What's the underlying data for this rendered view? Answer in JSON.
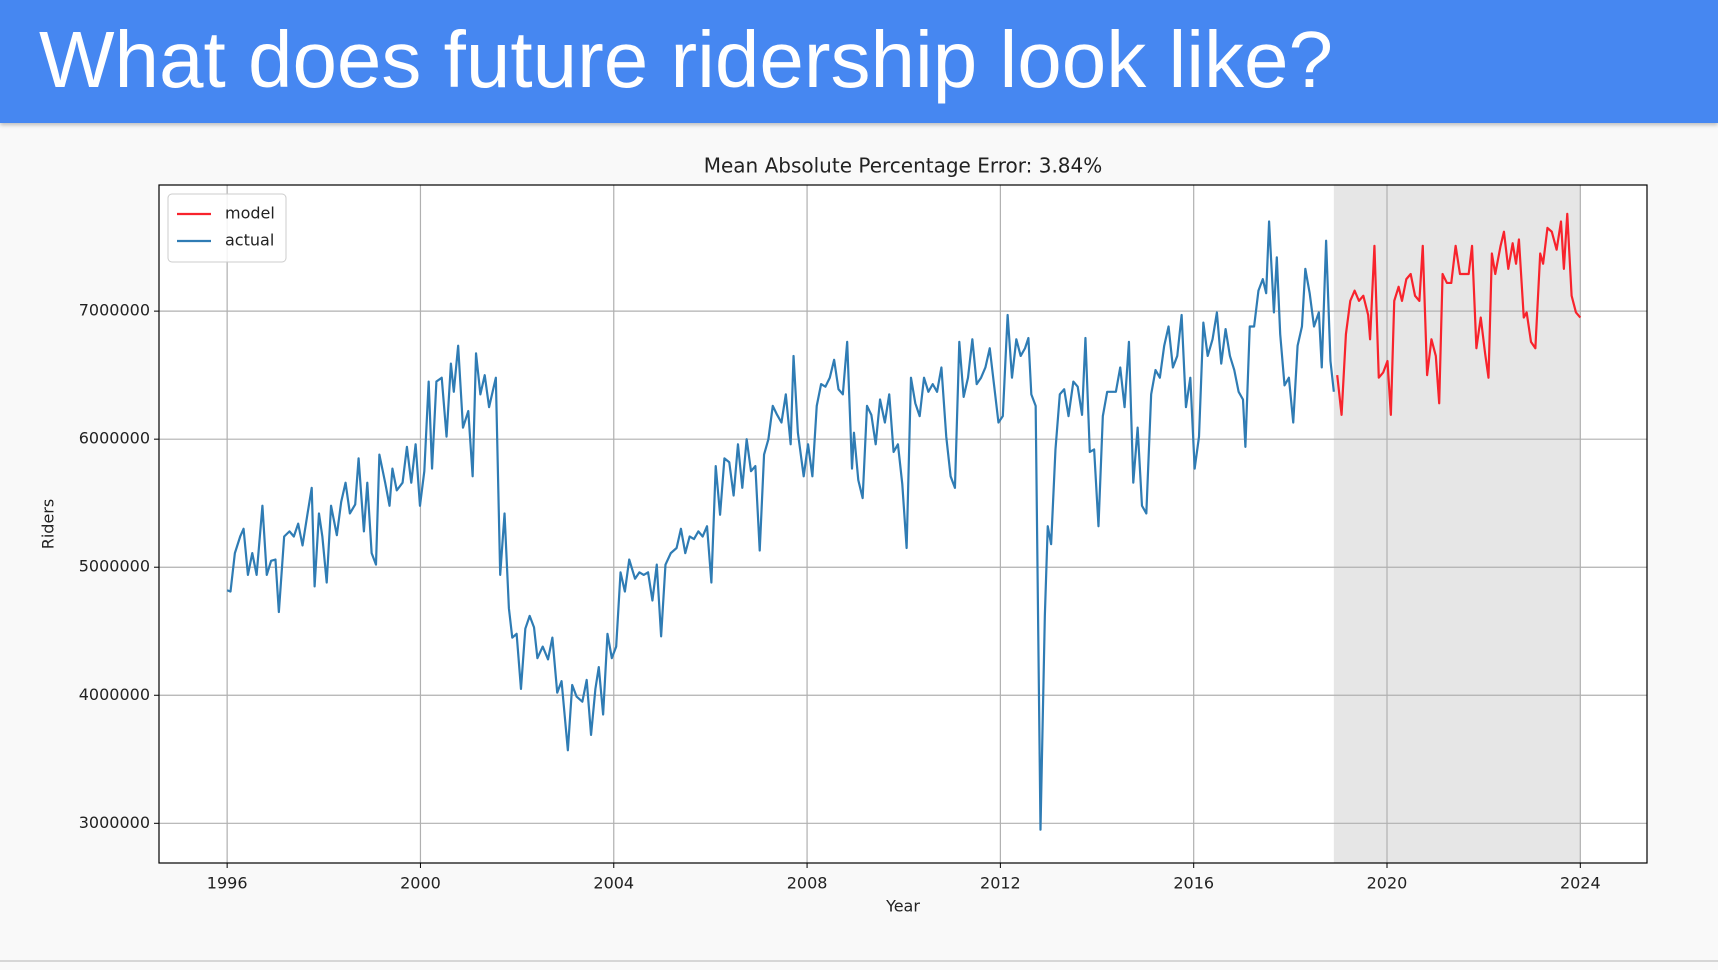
{
  "slide_title": "What does future ridership look like?",
  "chart_data": {
    "type": "line",
    "title": "Mean Absolute Percentage Error: 3.84%",
    "x_label": "Year",
    "y_label": "Riders",
    "xlim": [
      1994.59,
      2025.38
    ],
    "ylim": [
      2690000,
      7985000
    ],
    "xticks": [
      1996,
      2000,
      2004,
      2008,
      2012,
      2016,
      2020,
      2024
    ],
    "yticks": [
      3000000,
      4000000,
      5000000,
      6000000,
      7000000
    ],
    "grid": true,
    "legend": "upper left",
    "shaded_span": [
      2018.9,
      2024
    ],
    "shade_color": "#e6e6e6",
    "series": [
      {
        "name": "model",
        "color": "#f8232c",
        "x": [
          2018.97,
          2019.06,
          2019.15,
          2019.24,
          2019.33,
          2019.42,
          2019.51,
          2019.61,
          2019.65,
          2019.74,
          2019.83,
          2019.92,
          2020.01,
          2020.08,
          2020.15,
          2020.24,
          2020.31,
          2020.4,
          2020.49,
          2020.58,
          2020.67,
          2020.74,
          2020.83,
          2020.92,
          2021.01,
          2021.08,
          2021.15,
          2021.24,
          2021.33,
          2021.42,
          2021.51,
          2021.6,
          2021.69,
          2021.76,
          2021.85,
          2021.94,
          2022.03,
          2022.1,
          2022.17,
          2022.24,
          2022.35,
          2022.42,
          2022.51,
          2022.6,
          2022.67,
          2022.73,
          2022.83,
          2022.89,
          2022.98,
          2023.07,
          2023.17,
          2023.23,
          2023.32,
          2023.41,
          2023.51,
          2023.6,
          2023.66,
          2023.73,
          2023.82,
          2023.91,
          2024
        ],
        "values": [
          6500000,
          6190000,
          6820000,
          7080000,
          7160000,
          7080000,
          7120000,
          6970000,
          6780000,
          7510000,
          6480000,
          6520000,
          6610000,
          6190000,
          7080000,
          7190000,
          7080000,
          7250000,
          7290000,
          7120000,
          7080000,
          7510000,
          6500000,
          6780000,
          6650000,
          6280000,
          7290000,
          7220000,
          7220000,
          7510000,
          7290000,
          7290000,
          7290000,
          7510000,
          6710000,
          6950000,
          6670000,
          6480000,
          7450000,
          7290000,
          7510000,
          7620000,
          7330000,
          7530000,
          7370000,
          7560000,
          6950000,
          6990000,
          6760000,
          6710000,
          7450000,
          7370000,
          7650000,
          7620000,
          7480000,
          7700000,
          7330000,
          7760000,
          7120000,
          6990000,
          6950000
        ]
      },
      {
        "name": "actual",
        "color": "#2f7cb4",
        "x": [
          1996,
          1996.07,
          1996.16,
          1996.27,
          1996.34,
          1996.43,
          1996.52,
          1996.61,
          1996.73,
          1996.82,
          1996.91,
          1997,
          1997.07,
          1997.18,
          1997.29,
          1997.38,
          1997.47,
          1997.56,
          1997.66,
          1997.75,
          1997.81,
          1997.9,
          1997.97,
          1998.06,
          1998.15,
          1998.27,
          1998.36,
          1998.45,
          1998.54,
          1998.65,
          1998.72,
          1998.83,
          1998.9,
          1998.99,
          1999.08,
          1999.15,
          1999.27,
          1999.36,
          1999.42,
          1999.51,
          1999.63,
          1999.72,
          1999.81,
          1999.9,
          1999.99,
          2000.08,
          2000.17,
          2000.24,
          2000.33,
          2000.44,
          2000.54,
          2000.63,
          2000.69,
          2000.78,
          2000.88,
          2000.99,
          2001.08,
          2001.15,
          2001.24,
          2001.33,
          2001.42,
          2001.56,
          2001.65,
          2001.74,
          2001.83,
          2001.9,
          2001.99,
          2002.08,
          2002.17,
          2002.26,
          2002.35,
          2002.42,
          2002.53,
          2002.64,
          2002.73,
          2002.83,
          2002.92,
          2003.05,
          2003.14,
          2003.23,
          2003.35,
          2003.44,
          2003.53,
          2003.62,
          2003.69,
          2003.78,
          2003.87,
          2003.96,
          2004.05,
          2004.14,
          2004.23,
          2004.32,
          2004.44,
          2004.53,
          2004.62,
          2004.71,
          2004.8,
          2004.89,
          2004.98,
          2005.07,
          2005.18,
          2005.3,
          2005.39,
          2005.48,
          2005.57,
          2005.66,
          2005.75,
          2005.84,
          2005.93,
          2006.02,
          2006.11,
          2006.2,
          2006.29,
          2006.39,
          2006.48,
          2006.57,
          2006.66,
          2006.75,
          2006.84,
          2006.93,
          2007.02,
          2007.11,
          2007.2,
          2007.29,
          2007.38,
          2007.47,
          2007.56,
          2007.66,
          2007.72,
          2007.81,
          2007.93,
          2008.02,
          2008.11,
          2008.2,
          2008.29,
          2008.38,
          2008.47,
          2008.56,
          2008.65,
          2008.74,
          2008.83,
          2008.93,
          2008.97,
          2009.06,
          2009.15,
          2009.24,
          2009.33,
          2009.42,
          2009.51,
          2009.61,
          2009.7,
          2009.79,
          2009.88,
          2009.97,
          2010.06,
          2010.15,
          2010.24,
          2010.33,
          2010.42,
          2010.51,
          2010.6,
          2010.69,
          2010.78,
          2010.88,
          2010.97,
          2011.06,
          2011.15,
          2011.24,
          2011.33,
          2011.42,
          2011.51,
          2011.6,
          2011.69,
          2011.78,
          2011.87,
          2011.96,
          2012.05,
          2012.15,
          2012.24,
          2012.33,
          2012.42,
          2012.51,
          2012.58,
          2012.64,
          2012.73,
          2012.83,
          2012.92,
          2012.98,
          2013.05,
          2013.14,
          2013.23,
          2013.32,
          2013.41,
          2013.51,
          2013.6,
          2013.69,
          2013.76,
          2013.85,
          2013.94,
          2014.03,
          2014.12,
          2014.21,
          2014.3,
          2014.39,
          2014.48,
          2014.57,
          2014.66,
          2014.75,
          2014.84,
          2014.93,
          2015.02,
          2015.12,
          2015.21,
          2015.3,
          2015.39,
          2015.48,
          2015.57,
          2015.66,
          2015.75,
          2015.84,
          2015.93,
          2016.02,
          2016.11,
          2016.2,
          2016.29,
          2016.39,
          2016.48,
          2016.57,
          2016.66,
          2016.75,
          2016.84,
          2016.93,
          2017.02,
          2017.07,
          2017.16,
          2017.25,
          2017.34,
          2017.43,
          2017.5,
          2017.56,
          2017.66,
          2017.72,
          2017.79,
          2017.88,
          2017.97,
          2018.06,
          2018.15,
          2018.24,
          2018.31,
          2018.4,
          2018.49,
          2018.59,
          2018.65,
          2018.74,
          2018.83,
          2018.9
        ],
        "values": [
          4820000,
          4810000,
          5110000,
          5240000,
          5300000,
          4940000,
          5110000,
          4940000,
          5480000,
          4940000,
          5050000,
          5060000,
          4650000,
          5240000,
          5280000,
          5240000,
          5340000,
          5170000,
          5410000,
          5620000,
          4850000,
          5420000,
          5240000,
          4880000,
          5480000,
          5250000,
          5510000,
          5660000,
          5420000,
          5490000,
          5850000,
          5280000,
          5660000,
          5110000,
          5020000,
          5880000,
          5660000,
          5480000,
          5770000,
          5600000,
          5660000,
          5940000,
          5660000,
          5960000,
          5480000,
          5750000,
          6450000,
          5770000,
          6450000,
          6480000,
          6020000,
          6590000,
          6370000,
          6730000,
          6090000,
          6220000,
          5710000,
          6670000,
          6350000,
          6500000,
          6250000,
          6480000,
          4940000,
          5420000,
          4680000,
          4450000,
          4480000,
          4050000,
          4520000,
          4620000,
          4530000,
          4290000,
          4380000,
          4280000,
          4450000,
          4020000,
          4110000,
          3570000,
          4080000,
          3990000,
          3950000,
          4120000,
          3690000,
          4050000,
          4220000,
          3850000,
          4480000,
          4290000,
          4380000,
          4960000,
          4810000,
          5060000,
          4910000,
          4960000,
          4940000,
          4960000,
          4740000,
          5020000,
          4460000,
          5020000,
          5110000,
          5150000,
          5300000,
          5110000,
          5240000,
          5220000,
          5280000,
          5240000,
          5320000,
          4880000,
          5790000,
          5410000,
          5850000,
          5820000,
          5560000,
          5960000,
          5620000,
          6000000,
          5750000,
          5790000,
          5130000,
          5880000,
          6000000,
          6260000,
          6190000,
          6130000,
          6350000,
          5960000,
          6650000,
          6050000,
          5710000,
          5960000,
          5710000,
          6260000,
          6430000,
          6410000,
          6480000,
          6620000,
          6390000,
          6350000,
          6760000,
          5770000,
          6050000,
          5680000,
          5540000,
          6260000,
          6190000,
          5960000,
          6310000,
          6130000,
          6350000,
          5900000,
          5960000,
          5650000,
          5150000,
          6480000,
          6280000,
          6180000,
          6480000,
          6370000,
          6430000,
          6370000,
          6560000,
          6020000,
          5710000,
          5620000,
          6760000,
          6330000,
          6480000,
          6780000,
          6430000,
          6480000,
          6560000,
          6710000,
          6420000,
          6130000,
          6180000,
          6970000,
          6480000,
          6780000,
          6650000,
          6710000,
          6790000,
          6350000,
          6260000,
          2950000,
          4620000,
          5320000,
          5180000,
          5920000,
          6350000,
          6390000,
          6180000,
          6450000,
          6410000,
          6190000,
          6790000,
          5900000,
          5920000,
          5320000,
          6180000,
          6370000,
          6370000,
          6370000,
          6560000,
          6250000,
          6760000,
          5660000,
          6090000,
          5480000,
          5420000,
          6350000,
          6540000,
          6480000,
          6730000,
          6880000,
          6560000,
          6650000,
          6970000,
          6250000,
          6480000,
          5770000,
          6020000,
          6910000,
          6650000,
          6780000,
          6990000,
          6590000,
          6860000,
          6650000,
          6540000,
          6370000,
          6310000,
          5940000,
          6880000,
          6880000,
          7160000,
          7250000,
          7140000,
          7700000,
          6990000,
          7420000,
          6820000,
          6420000,
          6480000,
          6130000,
          6730000,
          6880000,
          7330000,
          7140000,
          6880000,
          6990000,
          6560000,
          7550000,
          6610000,
          6370000
        ]
      }
    ]
  }
}
